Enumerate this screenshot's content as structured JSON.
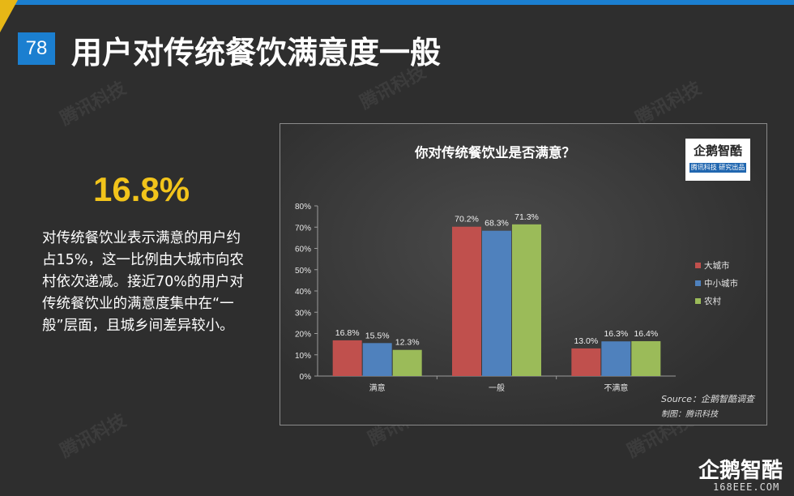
{
  "header": {
    "page_number": "78",
    "title": "用户对传统餐饮满意度一般"
  },
  "highlight": {
    "value": "16.8%",
    "text": "对传统餐饮业表示满意的用户约占15%，这一比例由大城市向农村依次递减。接近70%的用户对传统餐饮业的满意度集中在“一般”层面，且城乡间差异较小。"
  },
  "watermark": "腾讯科技",
  "chart_logo": {
    "name": "企鹅智酷",
    "tagline": "腾讯科技  研究出品"
  },
  "chart_data": {
    "type": "bar",
    "title": "你对传统餐饮业是否满意？",
    "categories": [
      "满意",
      "一般",
      "不满意"
    ],
    "series": [
      {
        "name": "大城市",
        "values": [
          16.8,
          70.2,
          13.0
        ],
        "color": "#c0504d"
      },
      {
        "name": "中小城市",
        "values": [
          15.5,
          68.3,
          16.3
        ],
        "color": "#4f81bd"
      },
      {
        "name": "农村",
        "values": [
          12.3,
          71.3,
          16.4
        ],
        "color": "#9bbb59"
      }
    ],
    "ylim": [
      0,
      80
    ],
    "yticks": [
      "0%",
      "10%",
      "20%",
      "30%",
      "40%",
      "50%",
      "60%",
      "70%",
      "80%"
    ],
    "value_suffix": "%",
    "legend_position": "right",
    "grid": false
  },
  "source": "Source：企鹅智酷调查",
  "credit": "制图：腾讯科技",
  "footer": {
    "brand": "企鹅智酷",
    "site": "168EEE.COM"
  }
}
